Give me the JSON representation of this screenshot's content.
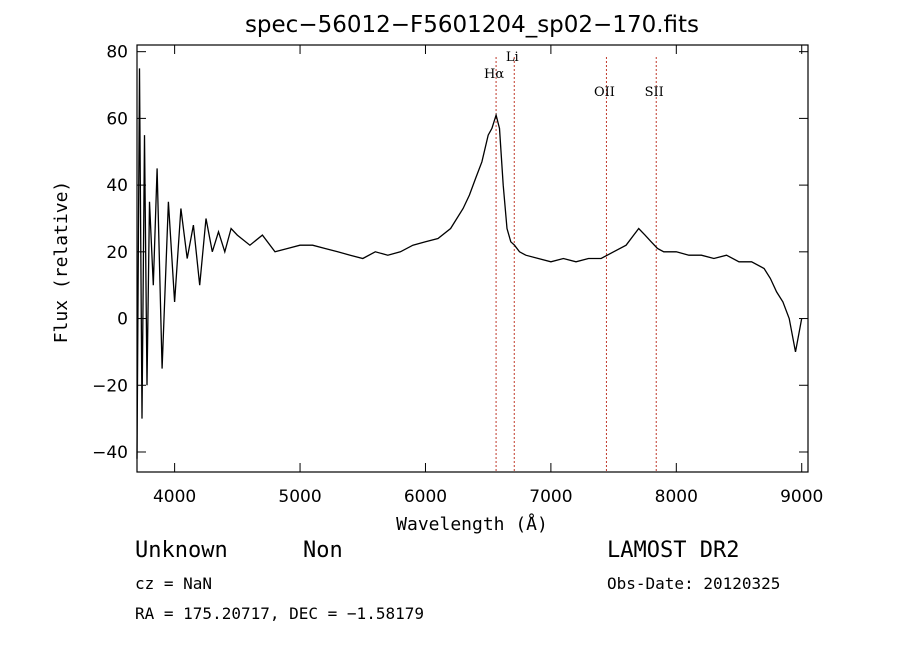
{
  "chart_data": {
    "type": "line",
    "title": "spec−56012−F5601204_sp02−170.fits",
    "xlabel": "Wavelength (Å)",
    "ylabel": "Flux (relative)",
    "xlim": [
      3700,
      9050
    ],
    "ylim": [
      -46,
      82
    ],
    "xticks": [
      4000,
      5000,
      6000,
      7000,
      8000,
      9000
    ],
    "yticks": [
      -40,
      -20,
      0,
      20,
      40,
      60,
      80
    ],
    "ytick_labels": [
      "−40",
      "−20",
      "0",
      "20",
      "40",
      "60",
      "80"
    ],
    "grid": false,
    "series": [
      {
        "x": [
          3700,
          3720,
          3740,
          3760,
          3780,
          3800,
          3830,
          3860,
          3900,
          3950,
          4000,
          4050,
          4100,
          4150,
          4200,
          4250,
          4300,
          4350,
          4400,
          4450,
          4500,
          4600,
          4700,
          4800,
          4900,
          5000,
          5100,
          5200,
          5300,
          5400,
          5500,
          5600,
          5700,
          5800,
          5900,
          6000,
          6100,
          6200,
          6300,
          6350,
          6400,
          6450,
          6500,
          6530,
          6563,
          6590,
          6620,
          6650,
          6680,
          6710,
          6750,
          6800,
          6900,
          7000,
          7100,
          7200,
          7300,
          7400,
          7500,
          7600,
          7700,
          7750,
          7800,
          7850,
          7900,
          8000,
          8100,
          8200,
          8300,
          8400,
          8500,
          8600,
          8700,
          8750,
          8800,
          8850,
          8900,
          8950,
          9000
        ],
        "y": [
          -42,
          75,
          -30,
          55,
          -20,
          35,
          10,
          45,
          -15,
          35,
          5,
          33,
          18,
          28,
          10,
          30,
          20,
          26,
          20,
          27,
          25,
          22,
          25,
          20,
          21,
          22,
          22,
          21,
          20,
          19,
          18,
          20,
          19,
          20,
          22,
          23,
          24,
          27,
          33,
          37,
          42,
          47,
          55,
          57,
          61,
          57,
          40,
          27,
          23,
          22,
          20,
          19,
          18,
          17,
          18,
          17,
          18,
          18,
          20,
          22,
          27,
          25,
          23,
          21,
          20,
          20,
          19,
          19,
          18,
          19,
          17,
          17,
          15,
          12,
          8,
          5,
          0,
          -10,
          0
        ]
      }
    ],
    "lines": [
      {
        "label": "Hα",
        "x": 6563
      },
      {
        "label": "Li",
        "x": 6708
      },
      {
        "label": "OII",
        "x": 7443
      },
      {
        "label": "SII",
        "x": 7840
      }
    ],
    "line_color": "#c0392b"
  },
  "footer": {
    "class_label": "Unknown",
    "subclass_label": "Non",
    "survey": "LAMOST DR2",
    "cz": "cz = NaN",
    "obs_date": "Obs-Date: 20120325",
    "coords": "RA = 175.20717, DEC =  −1.58179"
  }
}
